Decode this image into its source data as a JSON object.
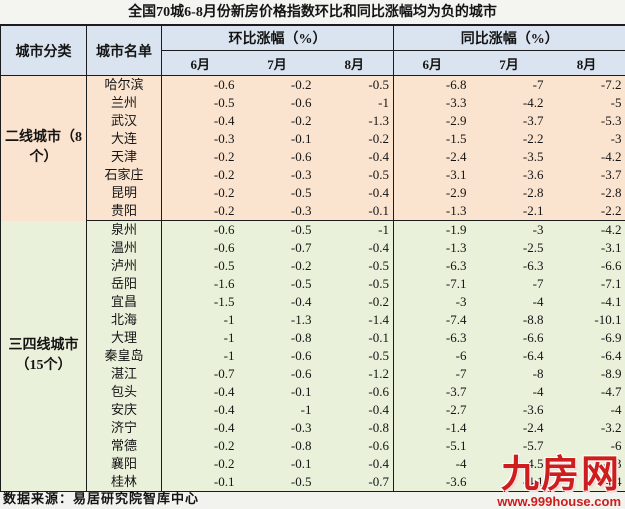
{
  "title": "全国70城6-8月份新房价格指数环比和同比涨幅均为负的城市",
  "source_note": "数据来源：易居研究院智库中心",
  "watermark": {
    "logo": "九房网",
    "url": "www.999house.com",
    "color": "#ce1d1d"
  },
  "colors": {
    "header_bg": "#dae4f0",
    "tier2_bg": "#fbe4cf",
    "tier34_bg": "#eaf1db",
    "border": "#1c1c1c",
    "watermark_red": "#ce1d1d"
  },
  "table": {
    "col_headers": {
      "category": "城市分类",
      "city": "城市名单",
      "mom_group": "环比涨幅（%）",
      "yoy_group": "同比涨幅（%）",
      "months": [
        "6月",
        "7月",
        "8月"
      ]
    },
    "sections": [
      {
        "category": "二线城市（8个）",
        "bg": "#fbe4cf",
        "rows": [
          {
            "city": "哈尔滨",
            "mom": [
              "-0.6",
              "-0.2",
              "-0.5"
            ],
            "yoy": [
              "-6.8",
              "-7",
              "-7.2"
            ]
          },
          {
            "city": "兰州",
            "mom": [
              "-0.5",
              "-0.6",
              "-1"
            ],
            "yoy": [
              "-3.3",
              "-4.2",
              "-5"
            ]
          },
          {
            "city": "武汉",
            "mom": [
              "-0.4",
              "-0.2",
              "-1.3"
            ],
            "yoy": [
              "-2.9",
              "-3.7",
              "-5.3"
            ]
          },
          {
            "city": "大连",
            "mom": [
              "-0.3",
              "-0.1",
              "-0.2"
            ],
            "yoy": [
              "-1.5",
              "-2.2",
              "-3"
            ]
          },
          {
            "city": "天津",
            "mom": [
              "-0.2",
              "-0.6",
              "-0.4"
            ],
            "yoy": [
              "-2.4",
              "-3.5",
              "-4.2"
            ]
          },
          {
            "city": "石家庄",
            "mom": [
              "-0.2",
              "-0.3",
              "-0.5"
            ],
            "yoy": [
              "-3.1",
              "-3.6",
              "-3.7"
            ]
          },
          {
            "city": "昆明",
            "mom": [
              "-0.2",
              "-0.5",
              "-0.4"
            ],
            "yoy": [
              "-2.9",
              "-2.8",
              "-2.8"
            ]
          },
          {
            "city": "贵阳",
            "mom": [
              "-0.2",
              "-0.3",
              "-0.1"
            ],
            "yoy": [
              "-1.3",
              "-2.1",
              "-2.2"
            ]
          }
        ]
      },
      {
        "category": "三四线城市（15个）",
        "bg": "#eaf1db",
        "rows": [
          {
            "city": "泉州",
            "mom": [
              "-0.6",
              "-0.5",
              "-1"
            ],
            "yoy": [
              "-1.9",
              "-3",
              "-4.2"
            ]
          },
          {
            "city": "温州",
            "mom": [
              "-0.6",
              "-0.7",
              "-0.4"
            ],
            "yoy": [
              "-1.3",
              "-2.5",
              "-3.1"
            ]
          },
          {
            "city": "泸州",
            "mom": [
              "-0.5",
              "-0.2",
              "-0.5"
            ],
            "yoy": [
              "-6.3",
              "-6.3",
              "-6.6"
            ]
          },
          {
            "city": "岳阳",
            "mom": [
              "-1.6",
              "-0.5",
              "-0.5"
            ],
            "yoy": [
              "-7.1",
              "-7",
              "-7.1"
            ]
          },
          {
            "city": "宜昌",
            "mom": [
              "-1.5",
              "-0.4",
              "-0.2"
            ],
            "yoy": [
              "-3",
              "-4",
              "-4.1"
            ]
          },
          {
            "city": "北海",
            "mom": [
              "-1",
              "-1.3",
              "-1.4"
            ],
            "yoy": [
              "-7.4",
              "-8.8",
              "-10.1"
            ]
          },
          {
            "city": "大理",
            "mom": [
              "-1",
              "-0.8",
              "-0.1"
            ],
            "yoy": [
              "-6.3",
              "-6.6",
              "-6.9"
            ]
          },
          {
            "city": "秦皇岛",
            "mom": [
              "-1",
              "-0.6",
              "-0.5"
            ],
            "yoy": [
              "-6",
              "-6.4",
              "-6.4"
            ]
          },
          {
            "city": "湛江",
            "mom": [
              "-0.7",
              "-0.6",
              "-1.2"
            ],
            "yoy": [
              "-7",
              "-8",
              "-8.9"
            ]
          },
          {
            "city": "包头",
            "mom": [
              "-0.4",
              "-0.1",
              "-0.6"
            ],
            "yoy": [
              "-3.7",
              "-4",
              "-4.7"
            ]
          },
          {
            "city": "安庆",
            "mom": [
              "-0.4",
              "-1",
              "-0.4"
            ],
            "yoy": [
              "-2.7",
              "-3.6",
              "-4"
            ]
          },
          {
            "city": "济宁",
            "mom": [
              "-0.4",
              "-0.3",
              "-0.8"
            ],
            "yoy": [
              "-1.4",
              "-2.4",
              "-3.2"
            ]
          },
          {
            "city": "常德",
            "mom": [
              "-0.2",
              "-0.8",
              "-0.6"
            ],
            "yoy": [
              "-5.1",
              "-5.7",
              "-6"
            ]
          },
          {
            "city": "襄阳",
            "mom": [
              "-0.2",
              "-0.1",
              "-0.4"
            ],
            "yoy": [
              "-4",
              "-4.5",
              "-5.3"
            ]
          },
          {
            "city": "桂林",
            "mom": [
              "-0.1",
              "-0.5",
              "-0.7"
            ],
            "yoy": [
              "-3.6",
              "-4.1",
              "-4.4"
            ]
          }
        ]
      }
    ]
  },
  "chart_data": {
    "type": "table",
    "title": "全国70城6-8月份新房价格指数环比和同比涨幅均为负的城市",
    "column_groups": [
      "环比涨幅（%）",
      "同比涨幅（%）"
    ],
    "columns": [
      "城市分类",
      "城市名单",
      "环比6月",
      "环比7月",
      "环比8月",
      "同比6月",
      "同比7月",
      "同比8月"
    ],
    "rows": [
      [
        "二线城市（8个）",
        "哈尔滨",
        -0.6,
        -0.2,
        -0.5,
        -6.8,
        -7,
        -7.2
      ],
      [
        "二线城市（8个）",
        "兰州",
        -0.5,
        -0.6,
        -1,
        -3.3,
        -4.2,
        -5
      ],
      [
        "二线城市（8个）",
        "武汉",
        -0.4,
        -0.2,
        -1.3,
        -2.9,
        -3.7,
        -5.3
      ],
      [
        "二线城市（8个）",
        "大连",
        -0.3,
        -0.1,
        -0.2,
        -1.5,
        -2.2,
        -3
      ],
      [
        "二线城市（8个）",
        "天津",
        -0.2,
        -0.6,
        -0.4,
        -2.4,
        -3.5,
        -4.2
      ],
      [
        "二线城市（8个）",
        "石家庄",
        -0.2,
        -0.3,
        -0.5,
        -3.1,
        -3.6,
        -3.7
      ],
      [
        "二线城市（8个）",
        "昆明",
        -0.2,
        -0.5,
        -0.4,
        -2.9,
        -2.8,
        -2.8
      ],
      [
        "二线城市（8个）",
        "贵阳",
        -0.2,
        -0.3,
        -0.1,
        -1.3,
        -2.1,
        -2.2
      ],
      [
        "三四线城市（15个）",
        "泉州",
        -0.6,
        -0.5,
        -1,
        -1.9,
        -3,
        -4.2
      ],
      [
        "三四线城市（15个）",
        "温州",
        -0.6,
        -0.7,
        -0.4,
        -1.3,
        -2.5,
        -3.1
      ],
      [
        "三四线城市（15个）",
        "泸州",
        -0.5,
        -0.2,
        -0.5,
        -6.3,
        -6.3,
        -6.6
      ],
      [
        "三四线城市（15个）",
        "岳阳",
        -1.6,
        -0.5,
        -0.5,
        -7.1,
        -7,
        -7.1
      ],
      [
        "三四线城市（15个）",
        "宜昌",
        -1.5,
        -0.4,
        -0.2,
        -3,
        -4,
        -4.1
      ],
      [
        "三四线城市（15个）",
        "北海",
        -1,
        -1.3,
        -1.4,
        -7.4,
        -8.8,
        -10.1
      ],
      [
        "三四线城市（15个）",
        "大理",
        -1,
        -0.8,
        -0.1,
        -6.3,
        -6.6,
        -6.9
      ],
      [
        "三四线城市（15个）",
        "秦皇岛",
        -1,
        -0.6,
        -0.5,
        -6,
        -6.4,
        -6.4
      ],
      [
        "三四线城市（15个）",
        "湛江",
        -0.7,
        -0.6,
        -1.2,
        -7,
        -8,
        -8.9
      ],
      [
        "三四线城市（15个）",
        "包头",
        -0.4,
        -0.1,
        -0.6,
        -3.7,
        -4,
        -4.7
      ],
      [
        "三四线城市（15个）",
        "安庆",
        -0.4,
        -1,
        -0.4,
        -2.7,
        -3.6,
        -4
      ],
      [
        "三四线城市（15个）",
        "济宁",
        -0.4,
        -0.3,
        -0.8,
        -1.4,
        -2.4,
        -3.2
      ],
      [
        "三四线城市（15个）",
        "常德",
        -0.2,
        -0.8,
        -0.6,
        -5.1,
        -5.7,
        -6
      ],
      [
        "三四线城市（15个）",
        "襄阳",
        -0.2,
        -0.1,
        -0.4,
        -4,
        -4.5,
        -5.3
      ],
      [
        "三四线城市（15个）",
        "桂林",
        -0.1,
        -0.5,
        -0.7,
        -3.6,
        -4.1,
        -4.4
      ]
    ],
    "source": "数据来源：易居研究院智库中心"
  }
}
